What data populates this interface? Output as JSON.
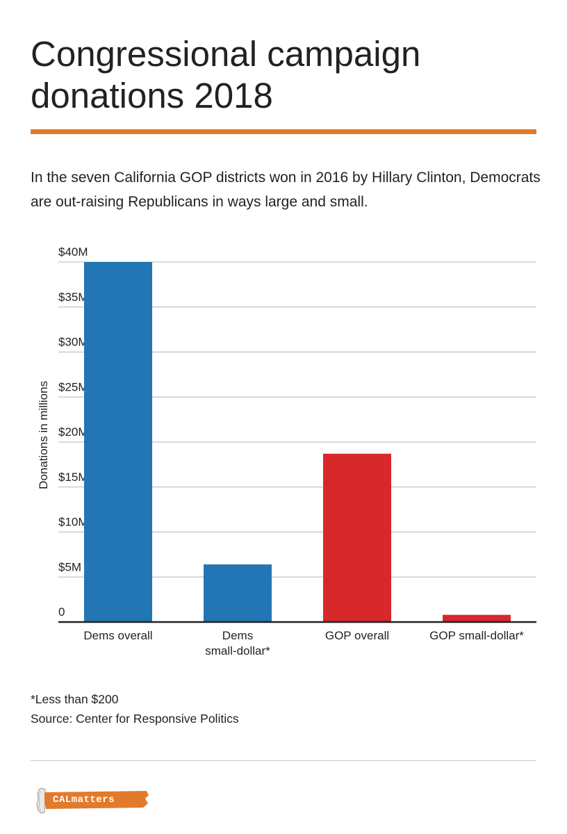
{
  "header": {
    "title": "Congressional campaign donations 2018",
    "subtitle": "In the seven California GOP districts won in 2016 by Hillary Clinton, Democrats are out-raising Republicans in ways large and small.",
    "accent_color": "#e27a2b"
  },
  "chart_data": {
    "type": "bar",
    "categories": [
      "Dems overall",
      "Dems small-dollar*",
      "GOP overall",
      "GOP small-dollar*"
    ],
    "category_lines": [
      [
        "Dems overall"
      ],
      [
        "Dems",
        "small-dollar*"
      ],
      [
        "GOP overall"
      ],
      [
        "GOP small-dollar*"
      ]
    ],
    "values": [
      40.0,
      6.4,
      18.7,
      0.8
    ],
    "colors": [
      "#2376b4",
      "#2376b4",
      "#d7282c",
      "#d7282c"
    ],
    "ylabel": "Donations in millions",
    "ylim": [
      0,
      40
    ],
    "yticks": [
      0,
      5,
      10,
      15,
      20,
      25,
      30,
      35,
      40
    ],
    "ytick_labels": [
      "0",
      "$5M",
      "$10M",
      "$15M",
      "$20M",
      "$25M",
      "$30M",
      "$35M",
      "$40M"
    ],
    "grid": true,
    "legend": false
  },
  "footer": {
    "footnote": "*Less than $200",
    "source": "Source: Center for Responsive Politics",
    "logo_text": "CALmatters",
    "logo_color": "#e27a2b"
  }
}
